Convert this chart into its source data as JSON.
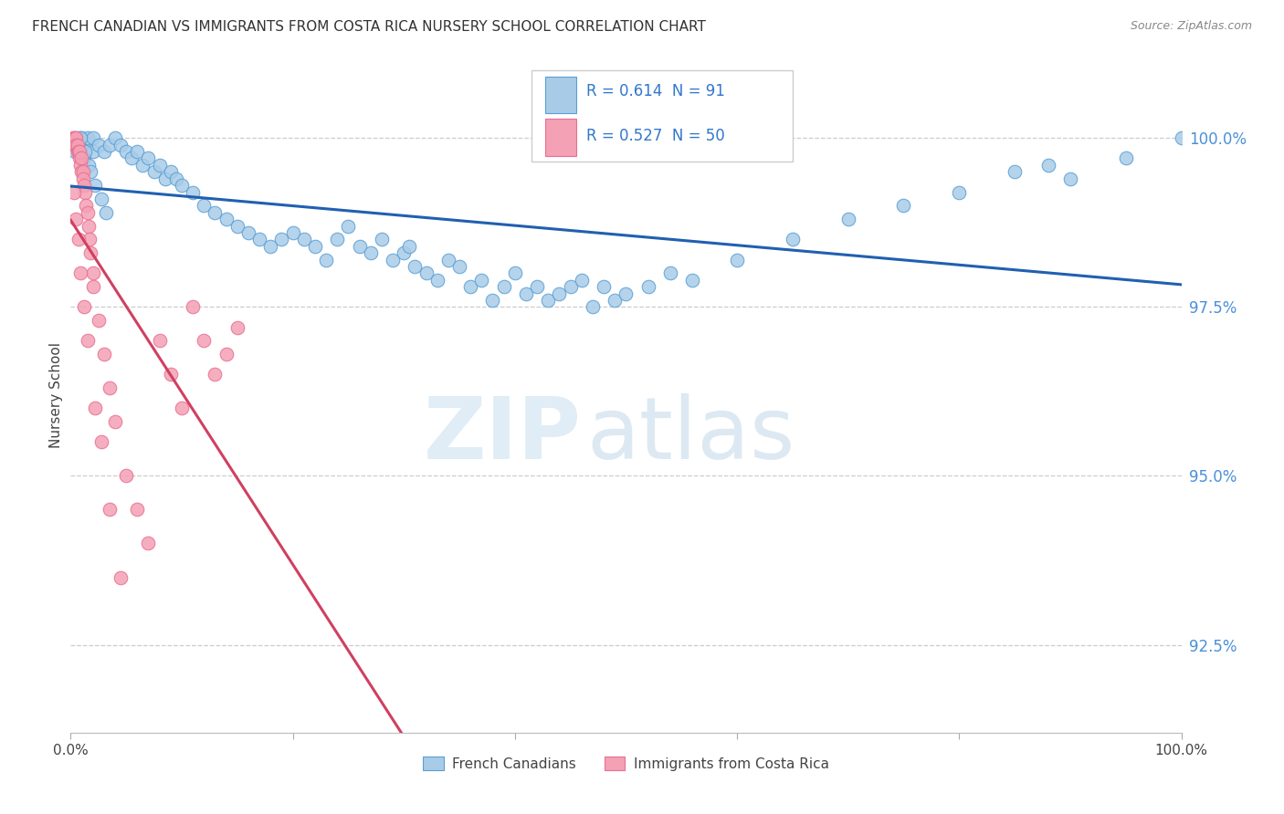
{
  "title": "FRENCH CANADIAN VS IMMIGRANTS FROM COSTA RICA NURSERY SCHOOL CORRELATION CHART",
  "source": "Source: ZipAtlas.com",
  "ylabel": "Nursery School",
  "yticks": [
    92.5,
    95.0,
    97.5,
    100.0
  ],
  "ytick_labels": [
    "92.5%",
    "95.0%",
    "97.5%",
    "100.0%"
  ],
  "xmin": 0.0,
  "xmax": 100.0,
  "ymin": 91.2,
  "ymax": 101.2,
  "blue_R": 0.614,
  "blue_N": 91,
  "pink_R": 0.527,
  "pink_N": 50,
  "legend_label_blue": "French Canadians",
  "legend_label_pink": "Immigrants from Costa Rica",
  "blue_color": "#a8cce8",
  "pink_color": "#f4a0b5",
  "blue_edge_color": "#5a9fd4",
  "pink_edge_color": "#e87090",
  "blue_line_color": "#2060b0",
  "pink_line_color": "#d04060",
  "background_color": "#ffffff",
  "blue_x": [
    0.3,
    0.5,
    0.6,
    0.8,
    1.0,
    1.0,
    1.2,
    1.5,
    1.5,
    2.0,
    2.0,
    2.5,
    3.0,
    3.5,
    4.0,
    4.5,
    5.0,
    5.5,
    6.0,
    6.5,
    7.0,
    7.5,
    8.0,
    8.5,
    9.0,
    9.5,
    10.0,
    11.0,
    12.0,
    13.0,
    14.0,
    15.0,
    16.0,
    17.0,
    18.0,
    19.0,
    20.0,
    21.0,
    22.0,
    23.0,
    24.0,
    25.0,
    26.0,
    27.0,
    28.0,
    29.0,
    30.0,
    30.5,
    31.0,
    32.0,
    33.0,
    34.0,
    35.0,
    36.0,
    37.0,
    38.0,
    39.0,
    40.0,
    41.0,
    42.0,
    43.0,
    44.0,
    45.0,
    46.0,
    47.0,
    48.0,
    49.0,
    50.0,
    52.0,
    54.0,
    56.0,
    60.0,
    65.0,
    70.0,
    75.0,
    80.0,
    85.0,
    88.0,
    90.0,
    95.0,
    100.0,
    0.4,
    0.7,
    0.9,
    1.1,
    1.3,
    1.6,
    1.8,
    2.2,
    2.8,
    3.2
  ],
  "blue_y": [
    99.9,
    99.9,
    100.0,
    99.8,
    100.0,
    99.9,
    99.7,
    99.9,
    100.0,
    99.8,
    100.0,
    99.9,
    99.8,
    99.9,
    100.0,
    99.9,
    99.8,
    99.7,
    99.8,
    99.6,
    99.7,
    99.5,
    99.6,
    99.4,
    99.5,
    99.4,
    99.3,
    99.2,
    99.0,
    98.9,
    98.8,
    98.7,
    98.6,
    98.5,
    98.4,
    98.5,
    98.6,
    98.5,
    98.4,
    98.2,
    98.5,
    98.7,
    98.4,
    98.3,
    98.5,
    98.2,
    98.3,
    98.4,
    98.1,
    98.0,
    97.9,
    98.2,
    98.1,
    97.8,
    97.9,
    97.6,
    97.8,
    98.0,
    97.7,
    97.8,
    97.6,
    97.7,
    97.8,
    97.9,
    97.5,
    97.8,
    97.6,
    97.7,
    97.8,
    98.0,
    97.9,
    98.2,
    98.5,
    98.8,
    99.0,
    99.2,
    99.5,
    99.6,
    99.4,
    99.7,
    100.0,
    99.8,
    99.9,
    100.0,
    99.7,
    99.8,
    99.6,
    99.5,
    99.3,
    99.1,
    98.9
  ],
  "pink_x": [
    0.2,
    0.3,
    0.4,
    0.4,
    0.5,
    0.5,
    0.6,
    0.6,
    0.7,
    0.8,
    0.8,
    0.9,
    1.0,
    1.0,
    1.1,
    1.1,
    1.2,
    1.3,
    1.4,
    1.5,
    1.6,
    1.7,
    1.8,
    2.0,
    2.0,
    2.5,
    3.0,
    3.5,
    4.0,
    5.0,
    6.0,
    7.0,
    8.0,
    9.0,
    10.0,
    11.0,
    12.0,
    13.0,
    14.0,
    15.0,
    0.3,
    0.5,
    0.7,
    0.9,
    1.2,
    1.5,
    2.2,
    2.8,
    3.5,
    4.5
  ],
  "pink_y": [
    100.0,
    100.0,
    100.0,
    99.9,
    100.0,
    99.9,
    99.8,
    99.9,
    99.8,
    99.7,
    99.8,
    99.6,
    99.7,
    99.5,
    99.5,
    99.4,
    99.3,
    99.2,
    99.0,
    98.9,
    98.7,
    98.5,
    98.3,
    98.0,
    97.8,
    97.3,
    96.8,
    96.3,
    95.8,
    95.0,
    94.5,
    94.0,
    97.0,
    96.5,
    96.0,
    97.5,
    97.0,
    96.5,
    96.8,
    97.2,
    99.2,
    98.8,
    98.5,
    98.0,
    97.5,
    97.0,
    96.0,
    95.5,
    94.5,
    93.5
  ]
}
